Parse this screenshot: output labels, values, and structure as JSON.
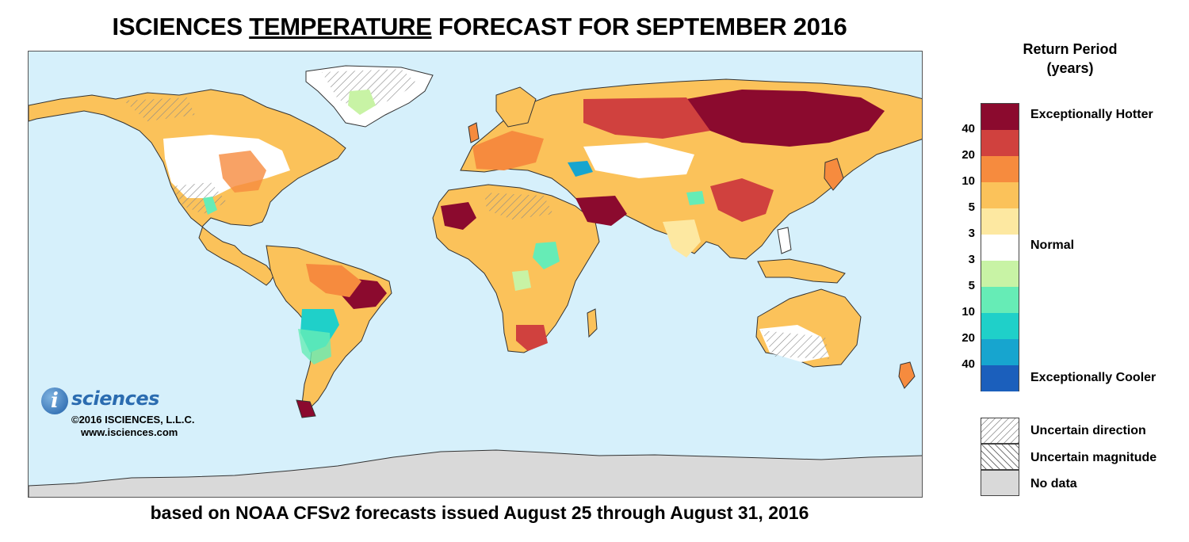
{
  "header": {
    "title_pre": "ISCIENCES ",
    "title_emph": "TEMPERATURE",
    "title_post": " FORECAST FOR SEPTEMBER 2016",
    "subtitle": "based on NOAA CFSv2 forecasts issued August 25 through August 31, 2016"
  },
  "logo": {
    "mark": "i",
    "word": "sciences",
    "copyright": "©2016 ISCIENCES, L.L.C.",
    "website": "www.isciences.com"
  },
  "legend": {
    "title_line1": "Return Period",
    "title_line2": "(years)",
    "swatches": [
      {
        "color": "#8b0a2e",
        "tick": "40"
      },
      {
        "color": "#d0413e",
        "tick": "20"
      },
      {
        "color": "#f68b3e",
        "tick": "10"
      },
      {
        "color": "#fbc25a",
        "tick": "5"
      },
      {
        "color": "#fde8a1",
        "tick": "3"
      },
      {
        "color": "#ffffff",
        "tick": "3"
      },
      {
        "color": "#c8f3a5",
        "tick": "5"
      },
      {
        "color": "#66ecb6",
        "tick": "10"
      },
      {
        "color": "#1fd0c9",
        "tick": "20"
      },
      {
        "color": "#17a5cf",
        "tick": "40"
      },
      {
        "color": "#1b5fbc",
        "tick": ""
      }
    ],
    "hot_label": "Exceptionally Hotter",
    "normal_label": "Normal",
    "cool_label": "Exceptionally Cooler",
    "uncertain_direction": "Uncertain direction",
    "uncertain_magnitude": "Uncertain magnitude",
    "no_data": "No data"
  },
  "colors": {
    "ocean": "#d6f0fb",
    "no_data": "#d9d9d9",
    "border": "#333333"
  }
}
